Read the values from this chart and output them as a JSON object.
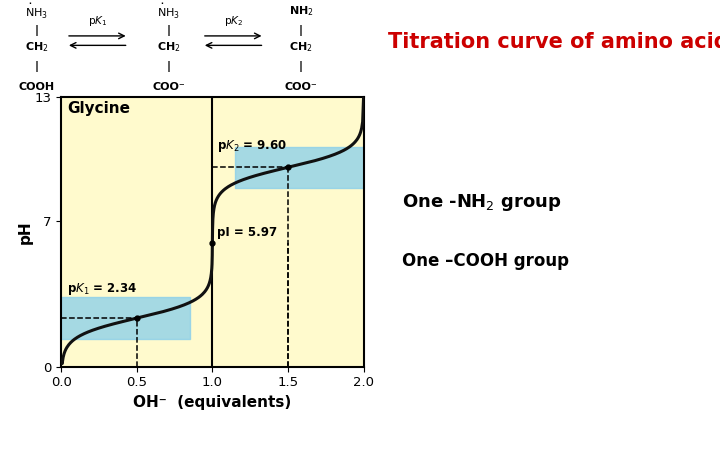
{
  "title": "Titration curve of amino acids",
  "title_color": "#cc0000",
  "bg_color": "#fffff0",
  "plot_bg_color": "#fffacd",
  "curve_color": "#111111",
  "highlight_color": "#87ceeb",
  "xlabel": "OH⁻  (equivalents)",
  "ylabel": "pH",
  "xlim": [
    0,
    2
  ],
  "ylim": [
    0,
    13
  ],
  "xticks": [
    0,
    0.5,
    1,
    1.5,
    2
  ],
  "yticks": [
    0,
    7,
    13
  ],
  "pK1": 2.34,
  "pK2": 9.6,
  "pI": 5.97,
  "label_glycine": "Glycine",
  "label_fontsize": 10,
  "axis_label_fontsize": 11,
  "title_fontsize": 15
}
